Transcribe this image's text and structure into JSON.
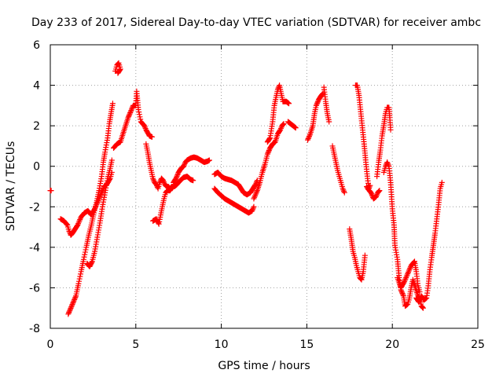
{
  "chart_data": {
    "type": "scatter",
    "title": "Day 233 of 2017, Sidereal Day-to-day VTEC variation (SDTVAR) for receiver ambc",
    "xlabel": "GPS time / hours",
    "ylabel": "SDTVAR / TECUs",
    "xlim": [
      0,
      25
    ],
    "ylim": [
      -8,
      6
    ],
    "xticks": [
      0,
      5,
      10,
      15,
      20,
      25
    ],
    "yticks": [
      -8,
      -6,
      -4,
      -2,
      0,
      2,
      4,
      6
    ],
    "grid": true,
    "marker": "+",
    "marker_color": "#ff0000",
    "segments": [
      [
        [
          0.0,
          -1.2
        ],
        [
          0.05,
          -1.2
        ]
      ],
      [
        [
          0.6,
          -2.6
        ],
        [
          0.8,
          -2.7
        ],
        [
          1.0,
          -2.9
        ],
        [
          1.1,
          -3.2
        ],
        [
          1.2,
          -3.4
        ],
        [
          1.3,
          -3.3
        ],
        [
          1.45,
          -3.1
        ],
        [
          1.6,
          -2.9
        ],
        [
          1.8,
          -2.5
        ],
        [
          2.0,
          -2.3
        ],
        [
          2.2,
          -2.2
        ],
        [
          2.4,
          -2.4
        ],
        [
          2.6,
          -2.1
        ],
        [
          2.8,
          -1.7
        ],
        [
          3.0,
          -1.3
        ],
        [
          3.15,
          -1.0
        ],
        [
          3.3,
          -0.9
        ],
        [
          3.5,
          -0.6
        ],
        [
          3.6,
          -0.3
        ]
      ],
      [
        [
          1.05,
          -7.3
        ],
        [
          1.2,
          -7.0
        ],
        [
          1.35,
          -6.7
        ],
        [
          1.5,
          -6.4
        ],
        [
          1.65,
          -5.8
        ],
        [
          1.8,
          -5.2
        ],
        [
          1.95,
          -4.6
        ],
        [
          2.1,
          -4.0
        ],
        [
          2.25,
          -3.4
        ],
        [
          2.4,
          -2.9
        ],
        [
          2.55,
          -2.3
        ],
        [
          2.7,
          -1.8
        ],
        [
          2.85,
          -1.2
        ],
        [
          3.0,
          -0.5
        ],
        [
          3.1,
          0.2
        ],
        [
          3.2,
          0.7
        ],
        [
          3.35,
          1.4
        ],
        [
          3.45,
          2.1
        ],
        [
          3.55,
          2.6
        ],
        [
          3.65,
          3.1
        ]
      ],
      [
        [
          2.15,
          -4.8
        ],
        [
          2.3,
          -4.95
        ],
        [
          2.45,
          -4.7
        ],
        [
          2.6,
          -4.2
        ],
        [
          2.75,
          -3.5
        ],
        [
          2.9,
          -2.8
        ],
        [
          3.05,
          -2.0
        ],
        [
          3.2,
          -1.3
        ],
        [
          3.35,
          -0.6
        ],
        [
          3.5,
          -0.1
        ],
        [
          3.6,
          0.3
        ]
      ],
      [
        [
          3.8,
          4.7
        ],
        [
          3.9,
          5.0
        ],
        [
          4.0,
          5.1
        ],
        [
          4.1,
          4.8
        ],
        [
          3.95,
          4.6
        ]
      ],
      [
        [
          3.7,
          0.9
        ],
        [
          3.9,
          1.1
        ],
        [
          4.1,
          1.2
        ],
        [
          4.25,
          1.6
        ],
        [
          4.4,
          2.0
        ],
        [
          4.55,
          2.4
        ],
        [
          4.7,
          2.7
        ],
        [
          4.85,
          3.0
        ],
        [
          5.0,
          3.0
        ],
        [
          5.05,
          3.7
        ],
        [
          5.15,
          2.8
        ],
        [
          5.3,
          2.2
        ],
        [
          5.5,
          2.0
        ],
        [
          5.6,
          1.8
        ],
        [
          5.8,
          1.5
        ],
        [
          5.95,
          1.45
        ]
      ],
      [
        [
          5.6,
          1.1
        ],
        [
          5.7,
          0.7
        ],
        [
          5.8,
          0.2
        ],
        [
          5.9,
          -0.2
        ],
        [
          6.0,
          -0.6
        ],
        [
          6.1,
          -0.8
        ],
        [
          6.2,
          -0.9
        ],
        [
          6.3,
          -1.1
        ],
        [
          6.4,
          -0.8
        ],
        [
          6.5,
          -0.6
        ],
        [
          6.6,
          -0.7
        ],
        [
          6.7,
          -0.9
        ],
        [
          6.8,
          -1.0
        ],
        [
          6.9,
          -1.0
        ],
        [
          7.0,
          -1.1
        ],
        [
          7.1,
          -1.0
        ]
      ],
      [
        [
          6.0,
          -2.7
        ],
        [
          6.2,
          -2.6
        ],
        [
          6.35,
          -2.85
        ],
        [
          6.45,
          -2.4
        ],
        [
          6.55,
          -2.0
        ],
        [
          6.65,
          -1.6
        ],
        [
          6.75,
          -1.3
        ],
        [
          6.85,
          -1.2
        ],
        [
          7.0,
          -1.2
        ],
        [
          7.15,
          -1.0
        ]
      ],
      [
        [
          7.2,
          -0.8
        ],
        [
          7.35,
          -0.6
        ],
        [
          7.5,
          -0.3
        ],
        [
          7.65,
          -0.1
        ],
        [
          7.8,
          0.0
        ],
        [
          7.9,
          0.2
        ],
        [
          8.0,
          0.3
        ],
        [
          8.2,
          0.4
        ],
        [
          8.4,
          0.45
        ],
        [
          8.6,
          0.4
        ],
        [
          8.8,
          0.3
        ],
        [
          9.0,
          0.2
        ],
        [
          9.2,
          0.25
        ],
        [
          9.3,
          0.3
        ]
      ],
      [
        [
          7.25,
          -1.0
        ],
        [
          7.4,
          -0.9
        ],
        [
          7.6,
          -0.7
        ],
        [
          7.8,
          -0.55
        ],
        [
          8.0,
          -0.5
        ],
        [
          8.2,
          -0.65
        ],
        [
          8.35,
          -0.7
        ]
      ],
      [
        [
          9.6,
          -1.1
        ],
        [
          9.8,
          -1.3
        ],
        [
          10.0,
          -1.45
        ],
        [
          10.2,
          -1.6
        ],
        [
          10.4,
          -1.7
        ],
        [
          10.6,
          -1.8
        ],
        [
          10.8,
          -1.9
        ],
        [
          11.0,
          -2.0
        ],
        [
          11.2,
          -2.1
        ],
        [
          11.4,
          -2.2
        ],
        [
          11.6,
          -2.3
        ],
        [
          11.8,
          -2.2
        ],
        [
          11.9,
          -2.0
        ]
      ],
      [
        [
          9.6,
          -0.4
        ],
        [
          9.8,
          -0.3
        ],
        [
          10.0,
          -0.5
        ],
        [
          10.2,
          -0.6
        ],
        [
          10.4,
          -0.65
        ],
        [
          10.6,
          -0.7
        ],
        [
          10.8,
          -0.8
        ],
        [
          11.0,
          -0.9
        ],
        [
          11.15,
          -1.1
        ],
        [
          11.3,
          -1.3
        ],
        [
          11.5,
          -1.4
        ],
        [
          11.7,
          -1.3
        ],
        [
          11.85,
          -1.1
        ],
        [
          12.0,
          -0.9
        ],
        [
          12.1,
          -0.7
        ]
      ],
      [
        [
          11.9,
          -1.6
        ],
        [
          12.1,
          -1.2
        ],
        [
          12.25,
          -0.8
        ],
        [
          12.4,
          -0.3
        ],
        [
          12.55,
          0.1
        ],
        [
          12.7,
          0.6
        ],
        [
          12.85,
          0.9
        ],
        [
          13.0,
          1.1
        ],
        [
          13.15,
          1.2
        ],
        [
          13.3,
          1.6
        ],
        [
          13.45,
          1.8
        ],
        [
          13.55,
          2.0
        ],
        [
          13.65,
          2.1
        ]
      ],
      [
        [
          12.7,
          1.2
        ],
        [
          12.85,
          1.4
        ],
        [
          13.0,
          2.2
        ],
        [
          13.1,
          3.0
        ],
        [
          13.2,
          3.4
        ],
        [
          13.3,
          3.8
        ],
        [
          13.4,
          4.0
        ],
        [
          13.5,
          3.6
        ],
        [
          13.6,
          3.2
        ],
        [
          13.8,
          3.2
        ],
        [
          13.95,
          3.1
        ]
      ],
      [
        [
          13.9,
          2.2
        ],
        [
          14.05,
          2.1
        ],
        [
          14.2,
          2.0
        ],
        [
          14.35,
          1.9
        ]
      ],
      [
        [
          15.05,
          1.3
        ],
        [
          15.2,
          1.6
        ],
        [
          15.35,
          2.0
        ],
        [
          15.45,
          2.6
        ],
        [
          15.55,
          3.0
        ],
        [
          15.7,
          3.3
        ],
        [
          15.85,
          3.5
        ],
        [
          15.95,
          3.6
        ]
      ],
      [
        [
          16.0,
          3.9
        ],
        [
          16.1,
          3.2
        ],
        [
          16.2,
          2.6
        ],
        [
          16.3,
          2.2
        ]
      ],
      [
        [
          16.5,
          1.0
        ],
        [
          16.6,
          0.6
        ],
        [
          16.7,
          0.2
        ],
        [
          16.8,
          -0.2
        ],
        [
          16.9,
          -0.5
        ],
        [
          17.0,
          -0.8
        ],
        [
          17.1,
          -1.1
        ],
        [
          17.2,
          -1.3
        ]
      ],
      [
        [
          17.5,
          -3.1
        ],
        [
          17.6,
          -3.6
        ],
        [
          17.7,
          -4.2
        ],
        [
          17.8,
          -4.5
        ],
        [
          17.9,
          -4.9
        ],
        [
          18.0,
          -5.2
        ],
        [
          18.1,
          -5.5
        ],
        [
          18.2,
          -5.6
        ],
        [
          18.3,
          -5.2
        ],
        [
          18.4,
          -4.4
        ]
      ],
      [
        [
          17.85,
          4.0
        ],
        [
          17.95,
          4.0
        ],
        [
          18.05,
          3.5
        ],
        [
          18.15,
          2.7
        ],
        [
          18.25,
          1.9
        ],
        [
          18.35,
          1.1
        ],
        [
          18.45,
          0.2
        ],
        [
          18.55,
          -0.6
        ],
        [
          18.65,
          -1.2
        ],
        [
          18.75,
          -1.3
        ],
        [
          18.9,
          -1.6
        ],
        [
          19.05,
          -1.5
        ],
        [
          19.15,
          -1.3
        ],
        [
          19.25,
          -1.2
        ]
      ],
      [
        [
          18.5,
          -1.0
        ],
        [
          18.6,
          -1.15
        ],
        [
          18.7,
          -0.95
        ]
      ],
      [
        [
          19.1,
          -0.5
        ],
        [
          19.2,
          0.2
        ],
        [
          19.3,
          0.8
        ],
        [
          19.4,
          1.5
        ],
        [
          19.5,
          2.0
        ],
        [
          19.6,
          2.6
        ],
        [
          19.7,
          2.9
        ],
        [
          19.8,
          2.9
        ],
        [
          19.85,
          2.4
        ],
        [
          19.9,
          1.8
        ]
      ],
      [
        [
          19.5,
          -0.3
        ],
        [
          19.6,
          0.0
        ],
        [
          19.7,
          0.2
        ],
        [
          19.8,
          0.0
        ],
        [
          19.9,
          -0.8
        ],
        [
          20.0,
          -2.1
        ],
        [
          20.1,
          -2.9
        ],
        [
          20.15,
          -3.9
        ],
        [
          20.3,
          -4.6
        ],
        [
          20.4,
          -5.5
        ],
        [
          20.5,
          -6.1
        ],
        [
          20.65,
          -6.4
        ],
        [
          20.75,
          -6.9
        ],
        [
          20.9,
          -6.8
        ],
        [
          21.0,
          -6.5
        ],
        [
          21.1,
          -6.0
        ],
        [
          21.2,
          -5.6
        ],
        [
          21.35,
          -6.0
        ],
        [
          21.5,
          -6.4
        ],
        [
          21.6,
          -6.5
        ],
        [
          21.7,
          -6.9
        ],
        [
          21.8,
          -7.0
        ]
      ],
      [
        [
          20.3,
          -5.5
        ],
        [
          20.5,
          -6.0
        ],
        [
          20.7,
          -5.7
        ],
        [
          20.9,
          -5.3
        ],
        [
          21.1,
          -4.9
        ],
        [
          21.3,
          -4.7
        ],
        [
          21.4,
          -5.2
        ],
        [
          21.5,
          -5.9
        ],
        [
          21.6,
          -6.2
        ]
      ],
      [
        [
          21.4,
          -6.5
        ],
        [
          21.55,
          -6.7
        ],
        [
          21.7,
          -6.4
        ],
        [
          21.85,
          -6.6
        ],
        [
          22.0,
          -6.5
        ],
        [
          22.1,
          -5.9
        ],
        [
          22.2,
          -5.1
        ],
        [
          22.3,
          -4.5
        ],
        [
          22.4,
          -3.9
        ],
        [
          22.5,
          -3.3
        ],
        [
          22.6,
          -2.6
        ],
        [
          22.7,
          -1.9
        ],
        [
          22.8,
          -1.1
        ],
        [
          22.9,
          -0.8
        ]
      ]
    ]
  }
}
